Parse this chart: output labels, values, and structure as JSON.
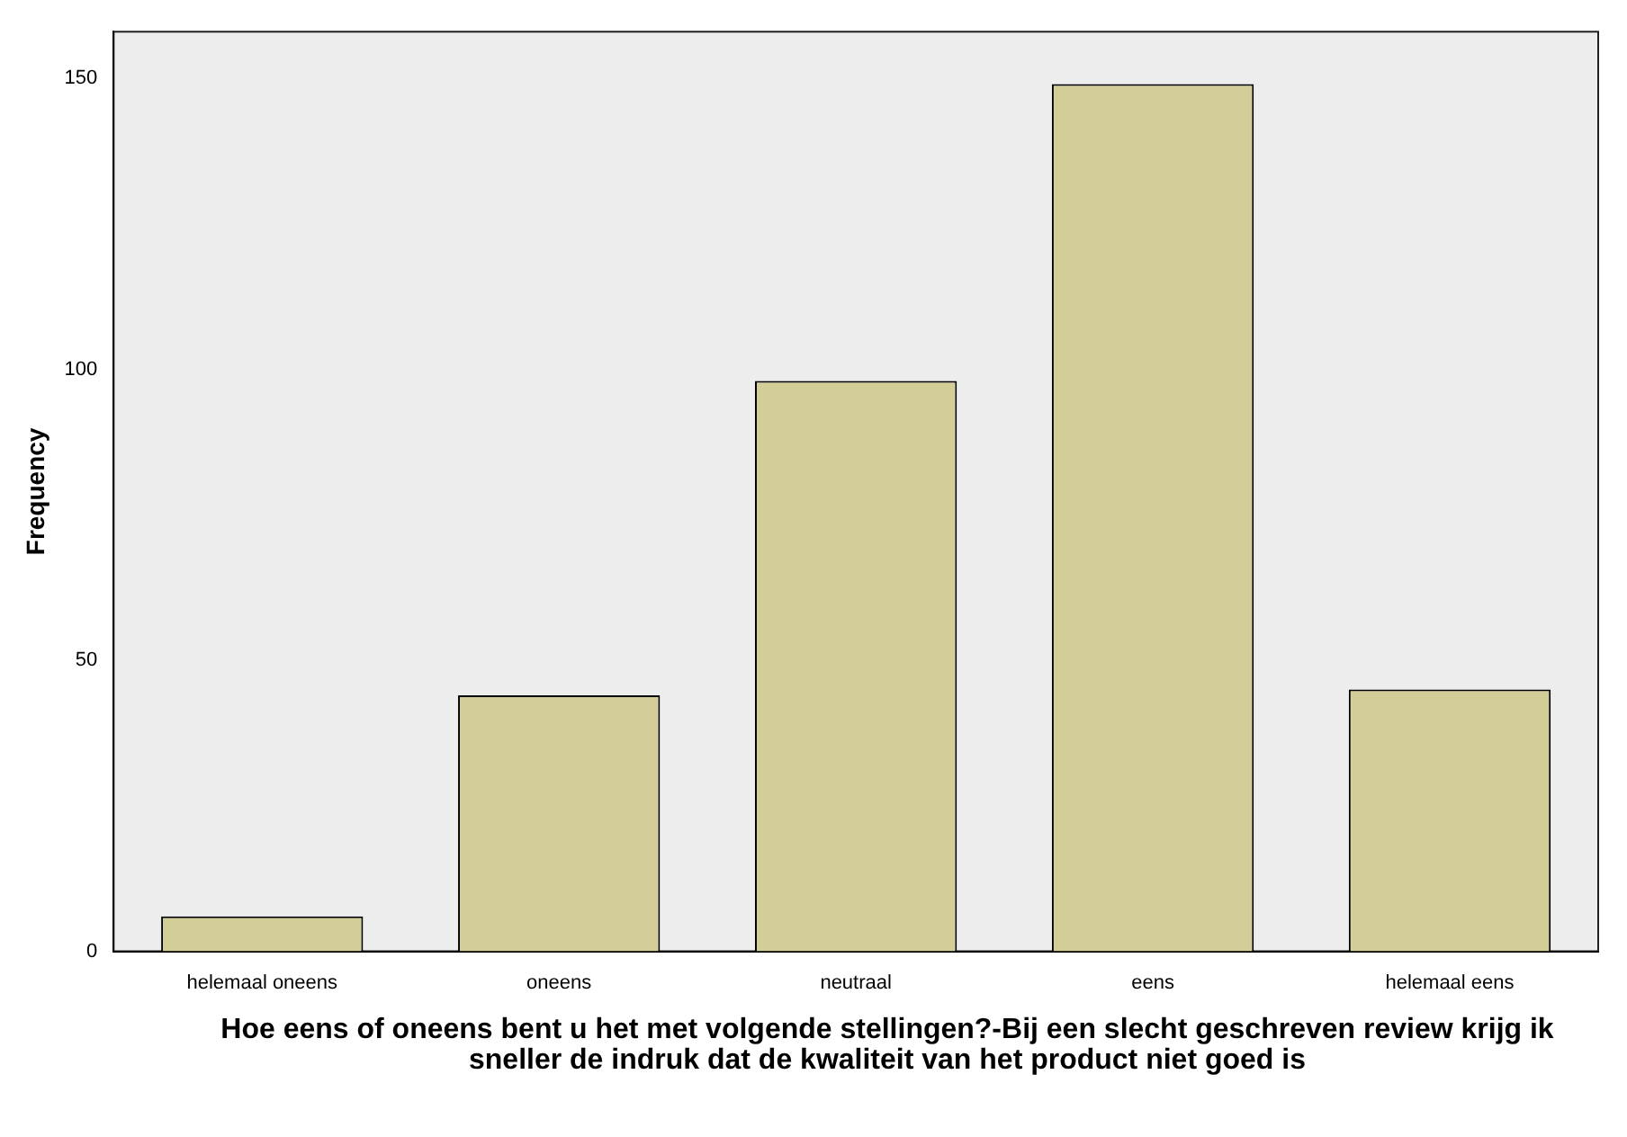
{
  "chart_data": {
    "type": "bar",
    "categories": [
      "helemaal oneens",
      "oneens",
      "neutraal",
      "eens",
      "helemaal eens"
    ],
    "values": [
      6,
      44,
      98,
      149,
      45
    ],
    "color": "#d3ce97",
    "ylim": [
      0,
      158
    ],
    "yticks": [
      0,
      50,
      100,
      150
    ],
    "ylabel": "Frequency",
    "xlabel": "Hoe eens of oneens bent u het met volgende stellingen?-Bij een slecht geschreven review krijg ik sneller de indruk dat de kwaliteit van het product niet goed is",
    "grid": false,
    "legend": false
  }
}
